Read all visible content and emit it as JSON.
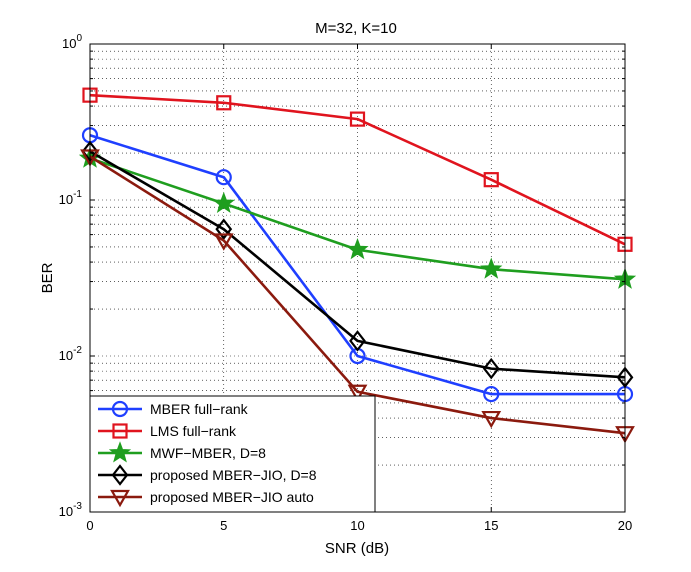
{
  "chart_data": {
    "type": "line",
    "title": "M=32, K=10",
    "xlabel": "SNR (dB)",
    "ylabel": "BER",
    "x": [
      0,
      5,
      10,
      15,
      20
    ],
    "xlim": [
      0,
      20
    ],
    "ylim": [
      0.001,
      1
    ],
    "yscale": "log",
    "grid": true,
    "legend_position": "bottom-left",
    "x_tick_labels": [
      "0",
      "5",
      "10",
      "15",
      "20"
    ],
    "y_tick_labels": [
      {
        "base": "10",
        "exp": "-3"
      },
      {
        "base": "10",
        "exp": "-2"
      },
      {
        "base": "10",
        "exp": "-1"
      },
      {
        "base": "10",
        "exp": "0"
      }
    ],
    "series": [
      {
        "name": "MBER full−rank",
        "color": "#1f3fff",
        "marker": "circle",
        "values": [
          0.26,
          0.14,
          0.01,
          0.0057,
          0.0057
        ]
      },
      {
        "name": "LMS full−rank",
        "color": "#e0141e",
        "marker": "square",
        "values": [
          0.47,
          0.42,
          0.33,
          0.135,
          0.052
        ]
      },
      {
        "name": "MWF−MBER, D=8",
        "color": "#1f9e1f",
        "marker": "star",
        "values": [
          0.185,
          0.095,
          0.048,
          0.036,
          0.031
        ]
      },
      {
        "name": "proposed MBER−JIO, D=8",
        "color": "#000000",
        "marker": "diamond",
        "values": [
          0.205,
          0.065,
          0.0125,
          0.0083,
          0.0073
        ]
      },
      {
        "name": "proposed MBER−JIO auto",
        "color": "#8b1a0e",
        "marker": "triangle-down",
        "values": [
          0.19,
          0.055,
          0.0059,
          0.004,
          0.0032
        ]
      }
    ]
  }
}
